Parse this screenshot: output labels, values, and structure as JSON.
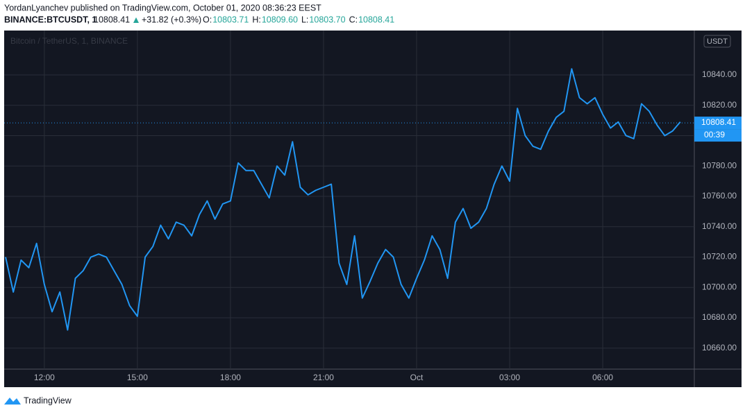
{
  "header": {
    "author_line": "YordanLyanchev published on TradingView.com, October 01, 2020 08:36:23 EEST",
    "symbol": "BINANCE:BTCUSDT, 1",
    "price": "10808.41",
    "change": "+31.82 (+0.3%)",
    "ohlc": [
      {
        "label": "O:",
        "value": "10803.71"
      },
      {
        "label": "H:",
        "value": "10809.60"
      },
      {
        "label": "L:",
        "value": "10803.70"
      },
      {
        "label": "C:",
        "value": "10808.41"
      }
    ]
  },
  "chart_data": {
    "type": "line",
    "watermark": "Bitcoin / TetherUS, 1, BINANCE",
    "currency": "USDT",
    "categories": [
      null,
      null,
      null,
      null,
      null,
      "12:00",
      null,
      null,
      null,
      null,
      null,
      null,
      null,
      null,
      null,
      null,
      null,
      "15:00",
      null,
      null,
      null,
      null,
      null,
      null,
      null,
      null,
      null,
      null,
      null,
      "18:00",
      null,
      null,
      null,
      null,
      null,
      null,
      null,
      null,
      null,
      null,
      null,
      "21:00",
      null,
      null,
      null,
      null,
      null,
      null,
      null,
      null,
      null,
      null,
      null,
      "Oct",
      null,
      null,
      null,
      null,
      null,
      null,
      null,
      null,
      null,
      null,
      null,
      "03:00",
      null,
      null,
      null,
      null,
      null,
      null,
      null,
      null,
      null,
      null,
      null,
      "06:00",
      null,
      null,
      null,
      null,
      null,
      null,
      null,
      null,
      null,
      null
    ],
    "series": [
      {
        "name": "BTCUSDT",
        "color": "#2196f3",
        "values": [
          10720,
          10697,
          10718,
          10713,
          10729,
          10702,
          10684,
          10697,
          10672,
          10706,
          10711,
          10720,
          10722,
          10720,
          10711,
          10702,
          10688,
          10681,
          10720,
          10727,
          10741,
          10732,
          10743,
          10741,
          10734,
          10748,
          10757,
          10745,
          10755,
          10757,
          10782,
          10777,
          10777,
          10768,
          10759,
          10780,
          10774,
          10796,
          10766,
          10761,
          10764,
          10766,
          10768,
          10716,
          10702,
          10734,
          10693,
          10704,
          10716,
          10725,
          10720,
          10702,
          10693,
          10706,
          10718,
          10734,
          10725,
          10706,
          10743,
          10752,
          10739,
          10743,
          10752,
          10768,
          10780,
          10770,
          10818,
          10800,
          10793,
          10791,
          10803,
          10812,
          10816,
          10844,
          10825,
          10821,
          10825,
          10814,
          10805,
          10809,
          10800,
          10798,
          10821,
          10816,
          10807,
          10800,
          10803,
          10809
        ]
      }
    ],
    "ylim": [
      10646.2,
      10867.4
    ],
    "yticks": [
      {
        "value": 10660,
        "label": "10660.00"
      },
      {
        "value": 10680,
        "label": "10680.00"
      },
      {
        "value": 10700,
        "label": "10700.00"
      },
      {
        "value": 10720,
        "label": "10720.00"
      },
      {
        "value": 10740,
        "label": "10740.00"
      },
      {
        "value": 10760,
        "label": "10760.00"
      },
      {
        "value": 10780,
        "label": "10780.00"
      },
      {
        "value": 10800,
        "label": "10800.00"
      },
      {
        "value": 10820,
        "label": "10820.00"
      },
      {
        "value": 10840,
        "label": "10840.00"
      }
    ],
    "grid": true,
    "last_price": 10808.41,
    "countdown": "00:39"
  },
  "footer": {
    "brand": "TradingView"
  }
}
